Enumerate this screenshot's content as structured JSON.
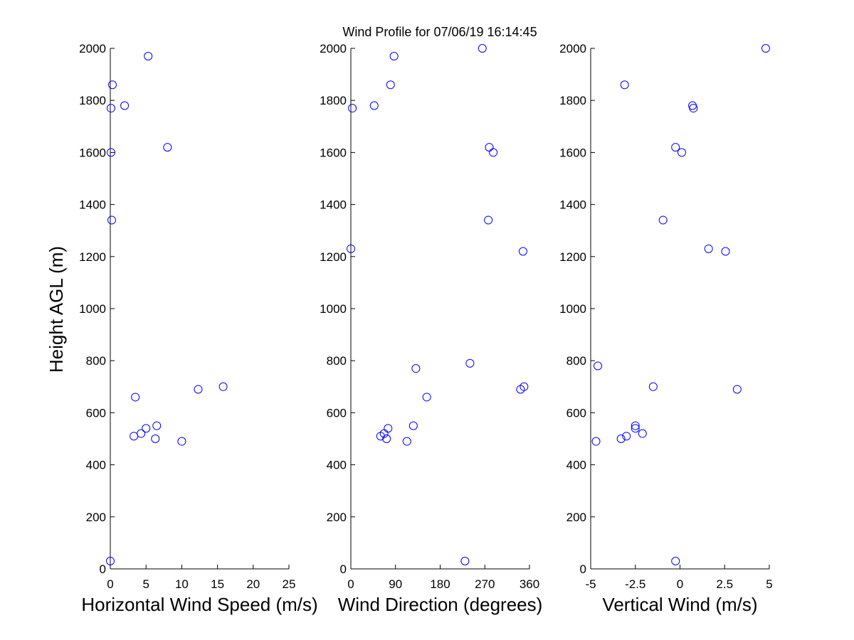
{
  "title": "Wind Profile for  07/06/19 16:14:45",
  "ylabel": "Height AGL (m)",
  "chart_data": [
    {
      "type": "scatter",
      "xlabel": "Horizontal Wind Speed (m/s)",
      "xlim": [
        0,
        25
      ],
      "xticks": [
        0,
        5,
        10,
        15,
        20,
        25
      ],
      "xticklabels": [
        "0",
        "5",
        "10",
        "15",
        "20",
        "25"
      ],
      "ylim": [
        0,
        2000
      ],
      "yticks": [
        0,
        200,
        400,
        600,
        800,
        1000,
        1200,
        1400,
        1600,
        1800,
        2000
      ],
      "yticklabels": [
        "0",
        "200",
        "400",
        "600",
        "800",
        "1000",
        "1200",
        "1400",
        "1600",
        "1800",
        "2000"
      ],
      "marker_color": "#0000ff",
      "points": [
        [
          0.0,
          30
        ],
        [
          10.0,
          490
        ],
        [
          6.3,
          500
        ],
        [
          3.3,
          510
        ],
        [
          4.3,
          520
        ],
        [
          5.0,
          540
        ],
        [
          6.5,
          550
        ],
        [
          3.5,
          660
        ],
        [
          12.3,
          690
        ],
        [
          15.8,
          700
        ],
        [
          0.2,
          1340
        ],
        [
          0.1,
          1600
        ],
        [
          8.0,
          1620
        ],
        [
          0.1,
          1770
        ],
        [
          2.0,
          1780
        ],
        [
          0.3,
          1860
        ],
        [
          5.3,
          1970
        ]
      ]
    },
    {
      "type": "scatter",
      "xlabel": "Wind Direction (degrees)",
      "xlim": [
        0,
        360
      ],
      "xticks": [
        0,
        90,
        180,
        270,
        360
      ],
      "xticklabels": [
        "0",
        "90",
        "180",
        "270",
        "360"
      ],
      "ylim": [
        0,
        2000
      ],
      "yticks": [
        0,
        200,
        400,
        600,
        800,
        1000,
        1200,
        1400,
        1600,
        1800,
        2000
      ],
      "yticklabels": [
        "0",
        "200",
        "400",
        "600",
        "800",
        "1000",
        "1200",
        "1400",
        "1600",
        "1800",
        "2000"
      ],
      "marker_color": "#0000ff",
      "points": [
        [
          230,
          30
        ],
        [
          113,
          490
        ],
        [
          72,
          500
        ],
        [
          60,
          510
        ],
        [
          67,
          520
        ],
        [
          75,
          540
        ],
        [
          126,
          550
        ],
        [
          153,
          660
        ],
        [
          342,
          690
        ],
        [
          349,
          700
        ],
        [
          131,
          770
        ],
        [
          240,
          790
        ],
        [
          0,
          1230
        ],
        [
          347,
          1220
        ],
        [
          277,
          1340
        ],
        [
          287,
          1600
        ],
        [
          279,
          1620
        ],
        [
          3,
          1770
        ],
        [
          47,
          1780
        ],
        [
          80,
          1860
        ],
        [
          87,
          1970
        ],
        [
          265,
          2000
        ]
      ]
    },
    {
      "type": "scatter",
      "xlabel": "Vertical Wind (m/s)",
      "xlim": [
        -5,
        5
      ],
      "xticks": [
        -5,
        -2.5,
        0,
        2.5,
        5
      ],
      "xticklabels": [
        "-5",
        "-2.5",
        "0",
        "2.5",
        "5"
      ],
      "ylim": [
        0,
        2000
      ],
      "yticks": [
        0,
        200,
        400,
        600,
        800,
        1000,
        1200,
        1400,
        1600,
        1800,
        2000
      ],
      "yticklabels": [
        "0",
        "200",
        "400",
        "600",
        "800",
        "1000",
        "1200",
        "1400",
        "1600",
        "1800",
        "2000"
      ],
      "marker_color": "#0000ff",
      "points": [
        [
          -0.25,
          30
        ],
        [
          -4.7,
          490
        ],
        [
          -3.3,
          500
        ],
        [
          -3.0,
          510
        ],
        [
          -2.1,
          520
        ],
        [
          -2.5,
          540
        ],
        [
          -2.5,
          550
        ],
        [
          3.2,
          690
        ],
        [
          -1.5,
          700
        ],
        [
          -4.6,
          780
        ],
        [
          1.6,
          1230
        ],
        [
          2.55,
          1220
        ],
        [
          -0.95,
          1340
        ],
        [
          0.1,
          1600
        ],
        [
          -0.25,
          1620
        ],
        [
          0.75,
          1770
        ],
        [
          0.7,
          1780
        ],
        [
          -3.1,
          1860
        ],
        [
          4.8,
          2000
        ]
      ]
    }
  ]
}
